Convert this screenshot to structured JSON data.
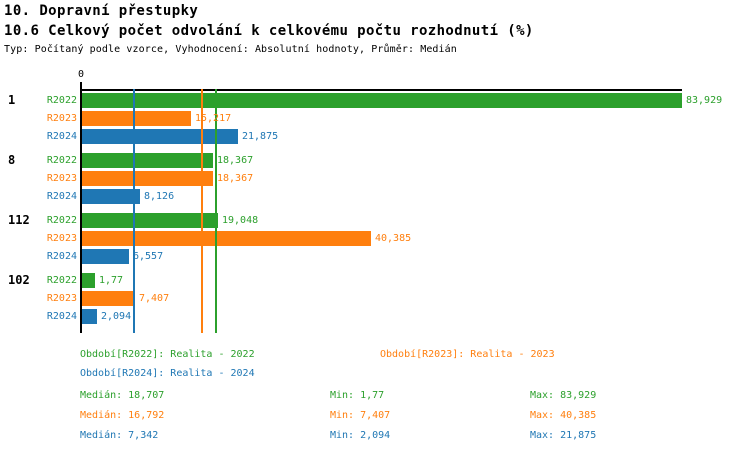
{
  "header": {
    "title": "10. Dopravní přestupky",
    "subtitle": "10.6 Celkový počet odvolání k celkovému počtu rozhodnutí (%)",
    "meta": "Typ: Počítaný podle vzorce, Vyhodnocení: Absolutní hodnoty, Průměr: Medián"
  },
  "chart_data": {
    "type": "bar",
    "orientation": "horizontal",
    "x_axis": {
      "zero_label": "0",
      "min": 0,
      "max_shown": 83.929,
      "gridlines": "median-lines-only"
    },
    "categories": [
      "1",
      "8",
      "112",
      "102"
    ],
    "series": [
      {
        "name": "R2022",
        "color": "#2ca02c",
        "legend_label": "Období[R2022]: Realita - 2022",
        "median": 18.707,
        "stats": {
          "median": "18,707",
          "min": "1,77",
          "max": "83,929"
        }
      },
      {
        "name": "R2023",
        "color": "#ff7f0e",
        "legend_label": "Období[R2023]: Realita - 2023",
        "median": 16.792,
        "stats": {
          "median": "16,792",
          "min": "7,407",
          "max": "40,385"
        }
      },
      {
        "name": "R2024",
        "color": "#1f77b4",
        "legend_label": "Období[R2024]: Realita - 2024",
        "median": 7.342,
        "stats": {
          "median": "7,342",
          "min": "2,094",
          "max": "21,875"
        }
      }
    ],
    "groups": [
      {
        "category": "1",
        "bars": [
          {
            "series": "R2022",
            "value": 83.929,
            "label": "83,929"
          },
          {
            "series": "R2023",
            "value": 15.217,
            "label": "15,217"
          },
          {
            "series": "R2024",
            "value": 21.875,
            "label": "21,875"
          }
        ]
      },
      {
        "category": "8",
        "bars": [
          {
            "series": "R2022",
            "value": 18.367,
            "label": "18,367"
          },
          {
            "series": "R2023",
            "value": 18.367,
            "label": "18,367"
          },
          {
            "series": "R2024",
            "value": 8.126,
            "label": "8,126"
          }
        ]
      },
      {
        "category": "112",
        "bars": [
          {
            "series": "R2022",
            "value": 19.048,
            "label": "19,048"
          },
          {
            "series": "R2023",
            "value": 40.385,
            "label": "40,385"
          },
          {
            "series": "R2024",
            "value": 6.557,
            "label": "6,557"
          }
        ]
      },
      {
        "category": "102",
        "bars": [
          {
            "series": "R2022",
            "value": 1.77,
            "label": "1,77"
          },
          {
            "series": "R2023",
            "value": 7.407,
            "label": "7,407"
          },
          {
            "series": "R2024",
            "value": 2.094,
            "label": "2,094"
          }
        ]
      }
    ]
  },
  "stats_labels": {
    "median": "Medián",
    "min": "Min",
    "max": "Max"
  }
}
